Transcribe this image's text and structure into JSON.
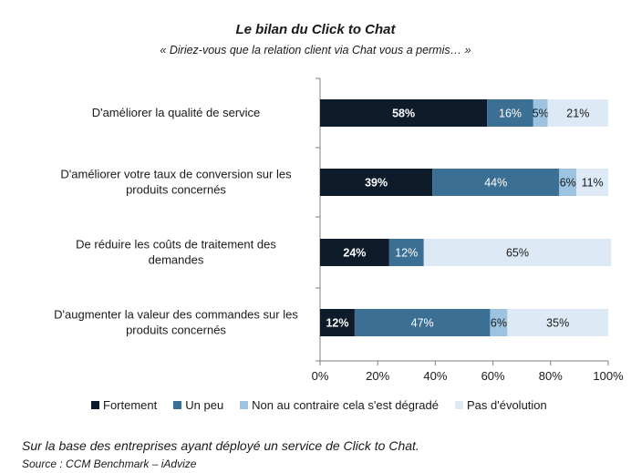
{
  "header": {
    "title": "Le bilan du Click to Chat",
    "subtitle": "« Diriez-vous que la relation client via Chat vous a permis… »"
  },
  "footer": {
    "note": "Sur la base des entreprises ayant déployé un service de Click to Chat.",
    "source": "Source : CCM Benchmark – iAdvize"
  },
  "colors": {
    "fortement": "#0d1b2a",
    "un_peu": "#3c6f94",
    "degrade": "#9cc3df",
    "pas_evolution": "#dde9f5"
  },
  "chart_data": {
    "type": "bar",
    "orientation": "horizontal",
    "stacked": true,
    "categories": [
      [
        "D'améliorer la qualité de service"
      ],
      [
        "D'améliorer votre taux de conversion sur les",
        "produits concernés"
      ],
      [
        "De réduire les coûts de traitement des",
        "demandes"
      ],
      [
        "D'augmenter la valeur des commandes sur les",
        "produits concernés"
      ]
    ],
    "series": [
      {
        "name": "Fortement",
        "color": "#0d1b2a",
        "label_color": "#ffffff",
        "values": [
          58,
          39,
          24,
          12
        ]
      },
      {
        "name": "Un peu",
        "color": "#3c6f94",
        "label_color": "#ffffff",
        "values": [
          16,
          44,
          12,
          47
        ]
      },
      {
        "name": "Non au contraire cela s'est dégradé",
        "color": "#9cc3df",
        "label_color": "#1a1a1a",
        "values": [
          5,
          6,
          0,
          6
        ]
      },
      {
        "name": "Pas d'évolution",
        "color": "#dde9f5",
        "label_color": "#1a1a1a",
        "values": [
          21,
          11,
          65,
          35
        ]
      }
    ],
    "xlim": [
      0,
      100
    ],
    "xticks": [
      "0%",
      "20%",
      "40%",
      "60%",
      "80%",
      "100%"
    ],
    "legend_position": "bottom",
    "grid": false
  }
}
